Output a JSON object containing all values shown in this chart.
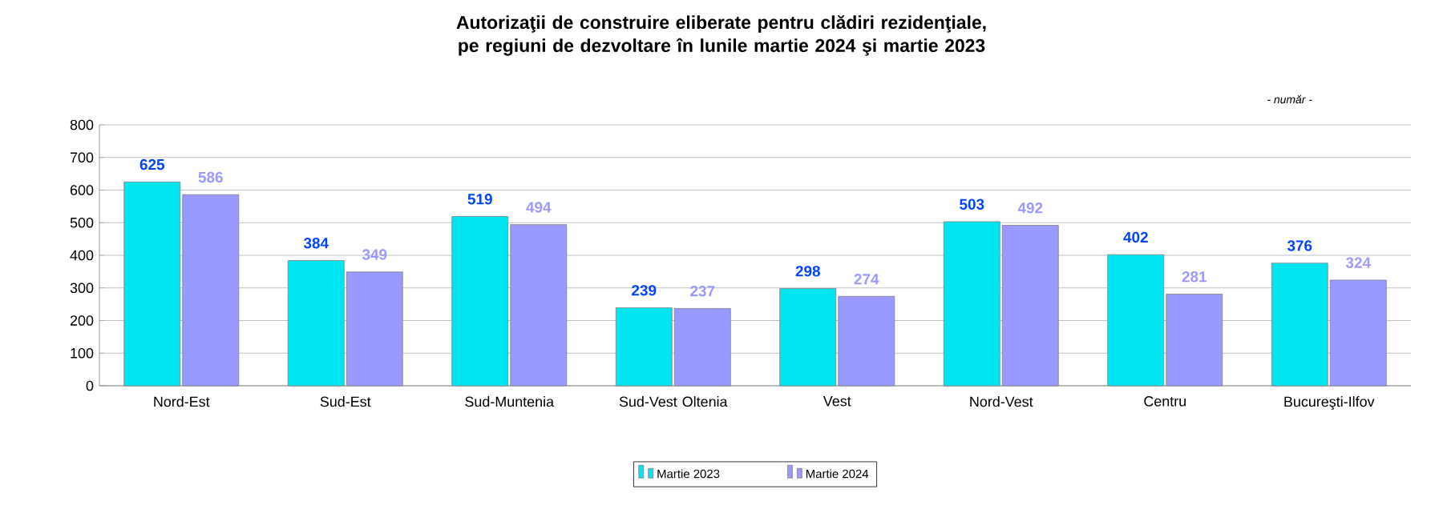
{
  "chart_data": {
    "type": "bar",
    "title": "Autorizaţii de construire eliberate pentru clădiri rezidenţiale, pe regiuni de dezvoltare în lunile martie 2024 şi martie 2023",
    "annotations": [
      "- număr -"
    ],
    "categories": [
      "Nord-Est",
      "Sud-Est",
      "Sud-Muntenia",
      "Sud-Vest Oltenia",
      "Vest",
      "Nord-Vest",
      "Centru",
      "Bucureşti-Ilfov"
    ],
    "series": [
      {
        "name": "Martie 2023",
        "color": "#00e5f0",
        "values": [
          625,
          384,
          519,
          239,
          298,
          503,
          402,
          376
        ]
      },
      {
        "name": "Martie 2024",
        "color": "#9999ff",
        "values": [
          586,
          349,
          494,
          237,
          274,
          492,
          281,
          324
        ]
      }
    ],
    "ylim": [
      0,
      800
    ],
    "yticks": [
      0,
      100,
      200,
      300,
      400,
      500,
      600,
      700,
      800
    ],
    "grid": "y",
    "legend": "bottom",
    "data_labels": true
  }
}
